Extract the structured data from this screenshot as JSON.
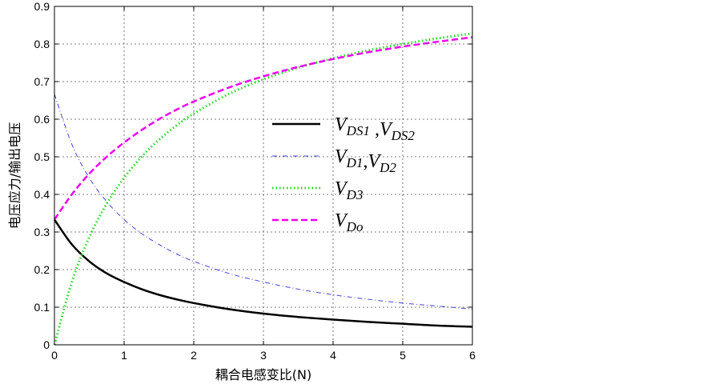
{
  "chart_data": {
    "type": "line",
    "title": "",
    "xlabel": "耦合电感变比(N)",
    "ylabel": "电压应力/输出电压",
    "xlim": [
      0,
      6
    ],
    "ylim": [
      0,
      0.9
    ],
    "x_ticks": [
      "0",
      "1",
      "2",
      "3",
      "4",
      "5",
      "6"
    ],
    "y_ticks": [
      "0",
      "0.1",
      "0.2",
      "0.3",
      "0.4",
      "0.5",
      "0.6",
      "0.7",
      "0.8",
      "0.9"
    ],
    "grid": true,
    "legend_position": "center-right",
    "x": [
      0,
      0.25,
      0.5,
      0.75,
      1,
      1.25,
      1.5,
      1.75,
      2,
      2.5,
      3,
      3.5,
      4,
      4.5,
      5,
      5.5,
      6
    ],
    "series": [
      {
        "name": "VDS1 ,VDS2",
        "name_parts": [
          [
            "V",
            "DS1"
          ],
          [
            " ,V",
            "DS2"
          ]
        ],
        "color": "#000000",
        "style": "solid",
        "values": [
          0.333,
          0.267,
          0.222,
          0.19,
          0.167,
          0.148,
          0.133,
          0.121,
          0.111,
          0.095,
          0.083,
          0.074,
          0.067,
          0.061,
          0.056,
          0.051,
          0.048
        ]
      },
      {
        "name": "VD1,VD2",
        "name_parts": [
          [
            "V",
            "D1"
          ],
          [
            ",V",
            "D2"
          ]
        ],
        "color": "#4444dd",
        "style": "dashdot",
        "values": [
          0.667,
          0.533,
          0.444,
          0.381,
          0.333,
          0.296,
          0.267,
          0.242,
          0.222,
          0.19,
          0.167,
          0.148,
          0.133,
          0.121,
          0.111,
          0.103,
          0.095
        ]
      },
      {
        "name": "VD3",
        "name_parts": [
          [
            "V",
            "D3"
          ]
        ],
        "color": "#22dd22",
        "style": "dotted",
        "values": [
          0,
          0.167,
          0.286,
          0.375,
          0.444,
          0.5,
          0.545,
          0.583,
          0.615,
          0.667,
          0.706,
          0.737,
          0.762,
          0.783,
          0.8,
          0.815,
          0.828
        ]
      },
      {
        "name": "VDo",
        "name_parts": [
          [
            "V",
            "Do"
          ]
        ],
        "color": "#ee00ee",
        "style": "dashed",
        "values": [
          0.333,
          0.4,
          0.455,
          0.5,
          0.538,
          0.571,
          0.6,
          0.625,
          0.647,
          0.684,
          0.714,
          0.739,
          0.76,
          0.778,
          0.793,
          0.806,
          0.818
        ]
      }
    ]
  }
}
